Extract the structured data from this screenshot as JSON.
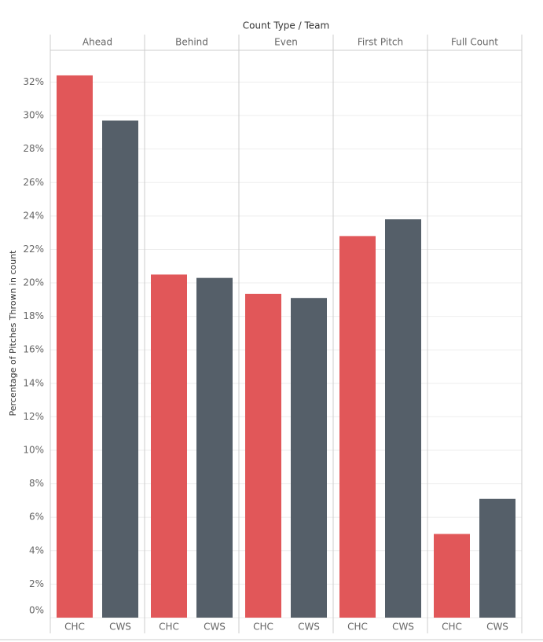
{
  "chart_data": {
    "type": "bar",
    "x_label": "Count Type / Team",
    "y_label": "Percentage of Pitches Thrown in count",
    "categories": [
      "Ahead",
      "Behind",
      "Even",
      "First Pitch",
      "Full Count"
    ],
    "series": [
      {
        "name": "CHC",
        "color": "#e15759",
        "values": [
          32.4,
          20.5,
          19.35,
          22.8,
          5.0
        ]
      },
      {
        "name": "CWS",
        "color": "#555f69",
        "values": [
          29.7,
          20.3,
          19.1,
          23.8,
          7.1
        ]
      }
    ],
    "ylim": [
      0,
      33.9
    ],
    "yticks": [
      {
        "value": 0,
        "label": "0%"
      },
      {
        "value": 2,
        "label": "2%"
      },
      {
        "value": 4,
        "label": "4%"
      },
      {
        "value": 6,
        "label": "6%"
      },
      {
        "value": 8,
        "label": "8%"
      },
      {
        "value": 10,
        "label": "10%"
      },
      {
        "value": 12,
        "label": "12%"
      },
      {
        "value": 14,
        "label": "14%"
      },
      {
        "value": 16,
        "label": "16%"
      },
      {
        "value": 18,
        "label": "18%"
      },
      {
        "value": 20,
        "label": "20%"
      },
      {
        "value": 22,
        "label": "22%"
      },
      {
        "value": 24,
        "label": "24%"
      },
      {
        "value": 26,
        "label": "26%"
      },
      {
        "value": 28,
        "label": "28%"
      },
      {
        "value": 30,
        "label": "30%"
      },
      {
        "value": 32,
        "label": "32%"
      }
    ],
    "grid": true
  }
}
